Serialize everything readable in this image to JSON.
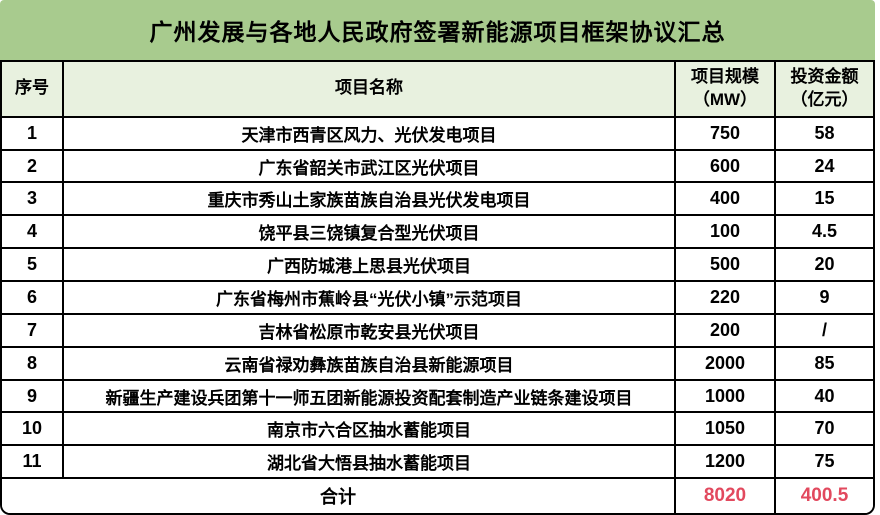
{
  "title": "广州发展与各地人民政府签署新能源项目框架协议汇总",
  "table": {
    "headers": {
      "no": "序号",
      "name": "项目名称",
      "scale_line1": "项目规模",
      "scale_line2": "（MW）",
      "inv_line1": "投资金额",
      "inv_line2": "（亿元）"
    },
    "rows": [
      {
        "no": "1",
        "name": "天津市西青区风力、光伏发电项目",
        "scale": "750",
        "investment": "58"
      },
      {
        "no": "2",
        "name": "广东省韶关市武江区光伏项目",
        "scale": "600",
        "investment": "24"
      },
      {
        "no": "3",
        "name": "重庆市秀山土家族苗族自治县光伏发电项目",
        "scale": "400",
        "investment": "15"
      },
      {
        "no": "4",
        "name": "饶平县三饶镇复合型光伏项目",
        "scale": "100",
        "investment": "4.5"
      },
      {
        "no": "5",
        "name": "广西防城港上思县光伏项目",
        "scale": "500",
        "investment": "20"
      },
      {
        "no": "6",
        "name": "广东省梅州市蕉岭县“光伏小镇”示范项目",
        "scale": "220",
        "investment": "9"
      },
      {
        "no": "7",
        "name": "吉林省松原市乾安县光伏项目",
        "scale": "200",
        "investment": "/"
      },
      {
        "no": "8",
        "name": "云南省禄劝彝族苗族自治县新能源项目",
        "scale": "2000",
        "investment": "85"
      },
      {
        "no": "9",
        "name": "新疆生产建设兵团第十一师五团新能源投资配套制造产业链条建设项目",
        "scale": "1000",
        "investment": "40"
      },
      {
        "no": "10",
        "name": "南京市六合区抽水蓄能项目",
        "scale": "1050",
        "investment": "70"
      },
      {
        "no": "11",
        "name": "湖北省大悟县抽水蓄能项目",
        "scale": "1200",
        "investment": "75"
      }
    ],
    "total": {
      "label": "合计",
      "scale": "8020",
      "investment": "400.5"
    }
  },
  "colors": {
    "title_bg": "#A8CB8E",
    "header_bg": "#E8F1DF",
    "row_bg": "#FFFFFF",
    "border": "#000000",
    "text_color": "#000000",
    "total_value_color": "#E2495E"
  },
  "chart_data": {
    "type": "table",
    "title": "广州发展与各地人民政府签署新能源项目框架协议汇总",
    "columns": [
      "序号",
      "项目名称",
      "项目规模（MW）",
      "投资金额（亿元）"
    ],
    "rows": [
      [
        "1",
        "天津市西青区风力、光伏发电项目",
        750,
        58
      ],
      [
        "2",
        "广东省韶关市武江区光伏项目",
        600,
        24
      ],
      [
        "3",
        "重庆市秀山土家族苗族自治县光伏发电项目",
        400,
        15
      ],
      [
        "4",
        "饶平县三饶镇复合型光伏项目",
        100,
        4.5
      ],
      [
        "5",
        "广西防城港上思县光伏项目",
        500,
        20
      ],
      [
        "6",
        "广东省梅州市蕉岭县“光伏小镇”示范项目",
        220,
        9
      ],
      [
        "7",
        "吉林省松原市乾安县光伏项目",
        200,
        "/"
      ],
      [
        "8",
        "云南省禄劝彝族苗族自治县新能源项目",
        2000,
        85
      ],
      [
        "9",
        "新疆生产建设兵团第十一师五团新能源投资配套制造产业链条建设项目",
        1000,
        40
      ],
      [
        "10",
        "南京市六合区抽水蓄能项目",
        1050,
        70
      ],
      [
        "11",
        "湖北省大悟县抽水蓄能项目",
        1200,
        75
      ]
    ],
    "total_row": [
      "合计",
      "",
      8020,
      400.5
    ]
  }
}
